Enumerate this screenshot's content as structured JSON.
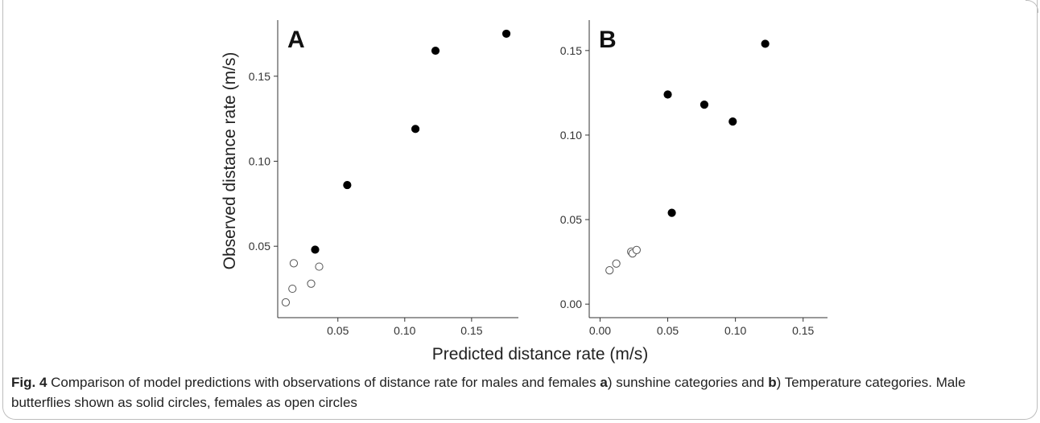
{
  "figure": {
    "xlabel": "Predicted distance rate (m/s)",
    "ylabel": "Observed distance rate (m/s)"
  },
  "caption": {
    "lead": "Fig. 4",
    "part1": " Comparison of model predictions with observations of distance rate for males and females ",
    "a_label": "a",
    "part2": ") sunshine categories and ",
    "b_label": "b",
    "part3": ") Temperature categories. Male butterflies shown as solid circles, females as open circles"
  },
  "chart_data": [
    {
      "type": "scatter",
      "panel_label": "A",
      "xlabel": "Predicted distance rate (m/s)",
      "ylabel": "Observed distance rate (m/s)",
      "xlim": [
        0.005,
        0.185
      ],
      "ylim": [
        0.008,
        0.183
      ],
      "xticks": [
        "0.05",
        "0.10",
        "0.15"
      ],
      "yticks": [
        "0.05",
        "0.10",
        "0.15"
      ],
      "xtick_values": [
        0.05,
        0.1,
        0.15
      ],
      "ytick_values": [
        0.05,
        0.1,
        0.15
      ],
      "grid": false,
      "series": [
        {
          "marker": "solid",
          "points": [
            [
              0.033,
              0.048
            ],
            [
              0.057,
              0.086
            ],
            [
              0.108,
              0.119
            ],
            [
              0.123,
              0.165
            ],
            [
              0.176,
              0.175
            ]
          ]
        },
        {
          "marker": "open",
          "points": [
            [
              0.011,
              0.017
            ],
            [
              0.016,
              0.025
            ],
            [
              0.017,
              0.04
            ],
            [
              0.03,
              0.028
            ],
            [
              0.036,
              0.038
            ]
          ]
        }
      ]
    },
    {
      "type": "scatter",
      "panel_label": "B",
      "xlabel": "Predicted distance rate (m/s)",
      "ylabel": "Observed distance rate (m/s)",
      "xlim": [
        -0.008,
        0.168
      ],
      "ylim": [
        -0.008,
        0.168
      ],
      "xticks": [
        "0.00",
        "0.05",
        "0.10",
        "0.15"
      ],
      "yticks": [
        "0.00",
        "0.05",
        "0.10",
        "0.15"
      ],
      "xtick_values": [
        0.0,
        0.05,
        0.1,
        0.15
      ],
      "ytick_values": [
        0.0,
        0.05,
        0.1,
        0.15
      ],
      "grid": false,
      "series": [
        {
          "marker": "solid",
          "points": [
            [
              0.05,
              0.124
            ],
            [
              0.053,
              0.054
            ],
            [
              0.077,
              0.118
            ],
            [
              0.098,
              0.108
            ],
            [
              0.122,
              0.154
            ]
          ]
        },
        {
          "marker": "open",
          "points": [
            [
              0.007,
              0.02
            ],
            [
              0.012,
              0.024
            ],
            [
              0.023,
              0.031
            ],
            [
              0.024,
              0.03
            ],
            [
              0.027,
              0.032
            ]
          ]
        }
      ]
    }
  ]
}
